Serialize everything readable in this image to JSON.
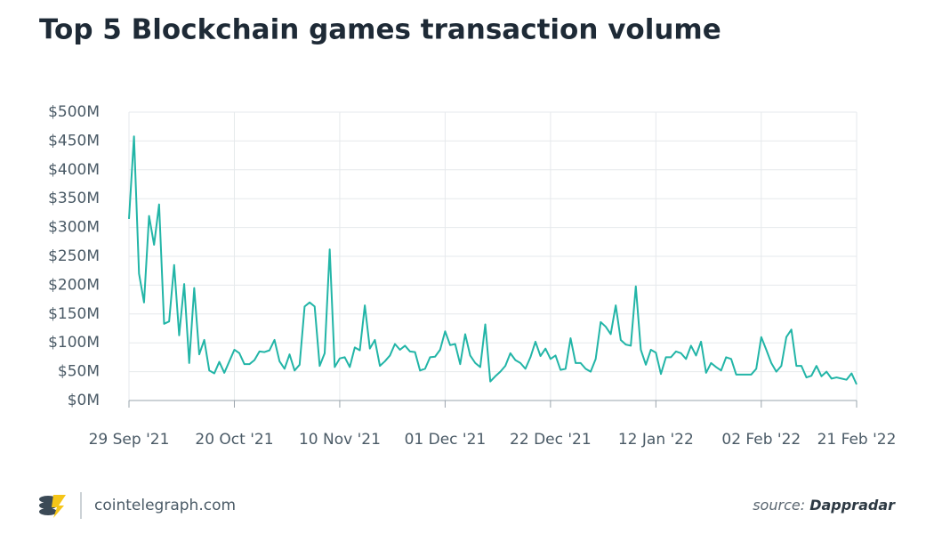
{
  "chart_data": {
    "type": "line",
    "title": "Top 5 Blockchain games transaction volume",
    "x": [
      "2021-09-29",
      "2021-09-30",
      "2021-10-01",
      "2021-10-02",
      "2021-10-03",
      "2021-10-04",
      "2021-10-05",
      "2021-10-06",
      "2021-10-07",
      "2021-10-08",
      "2021-10-09",
      "2021-10-10",
      "2021-10-11",
      "2021-10-12",
      "2021-10-13",
      "2021-10-14",
      "2021-10-15",
      "2021-10-16",
      "2021-10-17",
      "2021-10-18",
      "2021-10-19",
      "2021-10-20",
      "2021-10-21",
      "2021-10-22",
      "2021-10-23",
      "2021-10-24",
      "2021-10-25",
      "2021-10-26",
      "2021-10-27",
      "2021-10-28",
      "2021-10-29",
      "2021-10-30",
      "2021-10-31",
      "2021-11-01",
      "2021-11-02",
      "2021-11-03",
      "2021-11-04",
      "2021-11-05",
      "2021-11-06",
      "2021-11-07",
      "2021-11-08",
      "2021-11-09",
      "2021-11-10",
      "2021-11-11",
      "2021-11-12",
      "2021-11-13",
      "2021-11-14",
      "2021-11-15",
      "2021-11-16",
      "2021-11-17",
      "2021-11-18",
      "2021-11-19",
      "2021-11-20",
      "2021-11-21",
      "2021-11-22",
      "2021-11-23",
      "2021-11-24",
      "2021-11-25",
      "2021-11-26",
      "2021-11-27",
      "2021-11-28",
      "2021-11-29",
      "2021-11-30",
      "2021-12-01",
      "2021-12-02",
      "2021-12-03",
      "2021-12-04",
      "2021-12-05",
      "2021-12-06",
      "2021-12-07",
      "2021-12-08",
      "2021-12-09",
      "2021-12-10",
      "2021-12-11",
      "2021-12-12",
      "2021-12-13",
      "2021-12-14",
      "2021-12-15",
      "2021-12-16",
      "2021-12-17",
      "2021-12-18",
      "2021-12-19",
      "2021-12-20",
      "2021-12-21",
      "2021-12-22",
      "2021-12-23",
      "2021-12-24",
      "2021-12-25",
      "2021-12-26",
      "2021-12-27",
      "2021-12-28",
      "2021-12-29",
      "2021-12-30",
      "2021-12-31",
      "2022-01-01",
      "2022-01-02",
      "2022-01-03",
      "2022-01-04",
      "2022-01-05",
      "2022-01-06",
      "2022-01-07",
      "2022-01-08",
      "2022-01-09",
      "2022-01-10",
      "2022-01-11",
      "2022-01-12",
      "2022-01-13",
      "2022-01-14",
      "2022-01-15",
      "2022-01-16",
      "2022-01-17",
      "2022-01-18",
      "2022-01-19",
      "2022-01-20",
      "2022-01-21",
      "2022-01-22",
      "2022-01-23",
      "2022-01-24",
      "2022-01-25",
      "2022-01-26",
      "2022-01-27",
      "2022-01-28",
      "2022-01-29",
      "2022-01-30",
      "2022-01-31",
      "2022-02-01",
      "2022-02-02",
      "2022-02-03",
      "2022-02-04",
      "2022-02-05",
      "2022-02-06",
      "2022-02-07",
      "2022-02-08",
      "2022-02-09",
      "2022-02-10",
      "2022-02-11",
      "2022-02-12",
      "2022-02-13",
      "2022-02-14",
      "2022-02-15",
      "2022-02-16",
      "2022-02-17",
      "2022-02-18",
      "2022-02-19",
      "2022-02-20",
      "2022-02-21"
    ],
    "values": [
      315,
      458,
      220,
      170,
      320,
      270,
      340,
      133,
      137,
      235,
      113,
      202,
      65,
      195,
      80,
      105,
      52,
      47,
      67,
      48,
      68,
      88,
      82,
      63,
      63,
      70,
      85,
      84,
      87,
      105,
      68,
      55,
      80,
      52,
      62,
      163,
      170,
      163,
      60,
      82,
      262,
      58,
      73,
      75,
      58,
      92,
      87,
      165,
      90,
      105,
      60,
      68,
      78,
      98,
      88,
      95,
      85,
      84,
      52,
      55,
      75,
      76,
      88,
      120,
      96,
      98,
      63,
      115,
      78,
      65,
      58,
      132,
      33,
      42,
      50,
      60,
      82,
      70,
      65,
      55,
      75,
      102,
      77,
      90,
      72,
      78,
      53,
      55,
      108,
      65,
      65,
      55,
      50,
      72,
      136,
      128,
      115,
      165,
      105,
      97,
      95,
      198,
      88,
      62,
      88,
      83,
      46,
      75,
      75,
      85,
      82,
      72,
      95,
      78,
      102,
      48,
      65,
      58,
      52,
      75,
      72,
      45,
      45,
      45,
      45,
      55,
      110,
      88,
      65,
      50,
      60,
      110,
      123,
      60,
      60,
      40,
      43,
      60,
      42,
      50,
      38,
      40,
      38,
      36,
      47,
      28
    ],
    "color": "#22b5a7",
    "xlim": [
      "2021-09-29",
      "2022-02-21"
    ],
    "xticks": [
      {
        "value": "2021-09-29",
        "label": "29 Sep '21"
      },
      {
        "value": "2021-10-20",
        "label": "20 Oct '21"
      },
      {
        "value": "2021-11-10",
        "label": "10 Nov '21"
      },
      {
        "value": "2021-12-01",
        "label": "01 Dec '21"
      },
      {
        "value": "2021-12-22",
        "label": "22 Dec '21"
      },
      {
        "value": "2022-01-12",
        "label": "12 Jan '22"
      },
      {
        "value": "2022-02-02",
        "label": "02 Feb '22"
      },
      {
        "value": "2022-02-21",
        "label": "21 Feb '22"
      }
    ],
    "ylim": [
      0,
      500
    ],
    "yticks": [
      {
        "value": 0,
        "label": "$0M"
      },
      {
        "value": 50,
        "label": "$50M"
      },
      {
        "value": 100,
        "label": "$100M"
      },
      {
        "value": 150,
        "label": "$150M"
      },
      {
        "value": 200,
        "label": "$200M"
      },
      {
        "value": 250,
        "label": "$250M"
      },
      {
        "value": 300,
        "label": "$300M"
      },
      {
        "value": 350,
        "label": "$350M"
      },
      {
        "value": 400,
        "label": "$400M"
      },
      {
        "value": 450,
        "label": "$450M"
      },
      {
        "value": 500,
        "label": "$500M"
      }
    ],
    "grid": true
  },
  "footer": {
    "site": "cointelegraph.com",
    "source_label": "source:",
    "source_name": "Dappradar"
  }
}
